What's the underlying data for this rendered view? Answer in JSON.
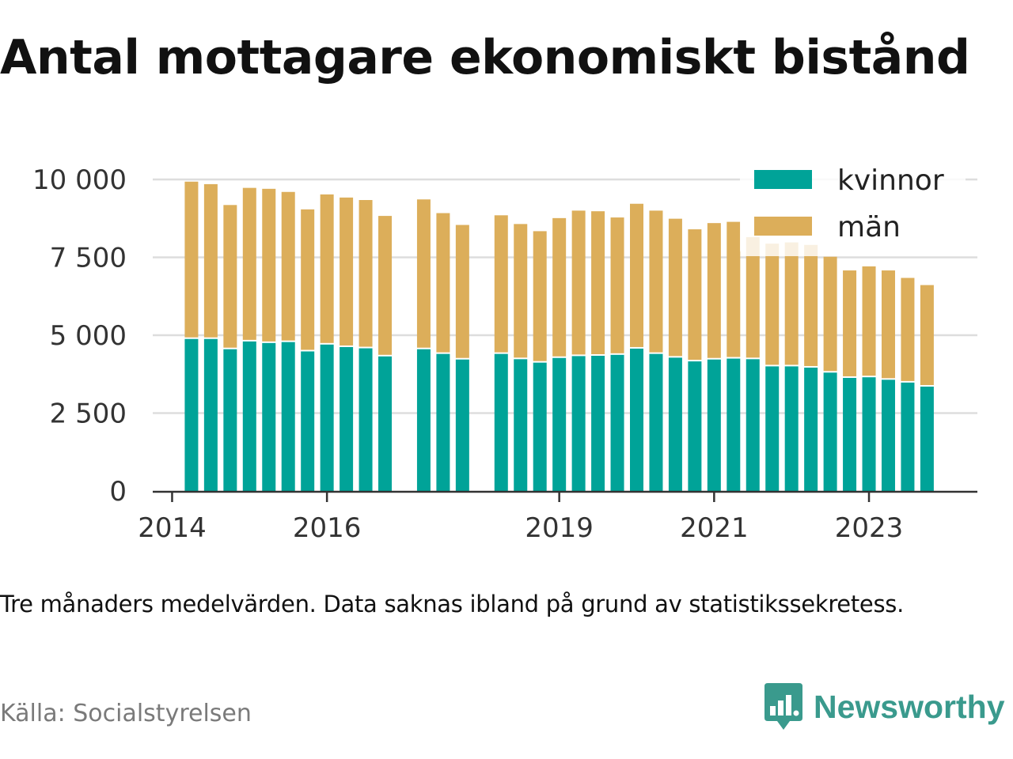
{
  "title": "Antal mottagare ekonomiskt bistånd",
  "note": "Tre månaders medelvärden. Data saknas ibland på grund av statistikssekretess.",
  "source": "Källa: Socialstyrelsen",
  "brand": "Newsworthy",
  "colors": {
    "kvinnor": "#00a398",
    "man": "#dcae5a",
    "grid": "#dddddd",
    "axis": "#333333"
  },
  "chart_data": {
    "type": "bar",
    "stacked": true,
    "title": "",
    "xlabel": "",
    "ylabel": "",
    "ylim": [
      0,
      10000
    ],
    "yticks": [
      0,
      2500,
      5000,
      7500,
      10000
    ],
    "ytick_labels": [
      "0",
      "2 500",
      "5 000",
      "7 500",
      "10 000"
    ],
    "xticks": [
      2014,
      2016,
      2019,
      2021,
      2023
    ],
    "xtick_labels": [
      "2014",
      "2016",
      "2019",
      "2021",
      "2023"
    ],
    "xlim": [
      2013.75,
      2024.4
    ],
    "grid": true,
    "legend_position": "top-right",
    "x": [
      2014.25,
      2014.5,
      2014.75,
      2015.0,
      2015.25,
      2015.5,
      2015.75,
      2016.0,
      2016.25,
      2016.5,
      2016.75,
      2017.25,
      2017.5,
      2017.75,
      2018.25,
      2018.5,
      2018.75,
      2019.0,
      2019.25,
      2019.5,
      2019.75,
      2020.0,
      2020.25,
      2020.5,
      2020.75,
      2021.0,
      2021.25,
      2021.5,
      2021.75,
      2022.0,
      2022.25,
      2022.5,
      2022.75,
      2023.0,
      2023.25,
      2023.5,
      2023.75
    ],
    "series": [
      {
        "name": "kvinnor",
        "values": [
          4880,
          4880,
          4550,
          4800,
          4750,
          4780,
          4480,
          4700,
          4620,
          4580,
          4320,
          4550,
          4400,
          4220,
          4400,
          4230,
          4120,
          4270,
          4330,
          4340,
          4370,
          4570,
          4400,
          4280,
          4160,
          4220,
          4250,
          4230,
          4000,
          4000,
          3960,
          3800,
          3630,
          3650,
          3570,
          3480,
          3350
        ]
      },
      {
        "name": "män",
        "values": [
          5050,
          4970,
          4630,
          4930,
          4950,
          4820,
          4560,
          4820,
          4800,
          4760,
          4510,
          4810,
          4520,
          4320,
          4450,
          4340,
          4220,
          4490,
          4670,
          4640,
          4410,
          4650,
          4600,
          4460,
          4240,
          4380,
          4390,
          3920,
          3940,
          3980,
          3940,
          3720,
          3450,
          3560,
          3510,
          3360,
          3260
        ]
      }
    ]
  }
}
